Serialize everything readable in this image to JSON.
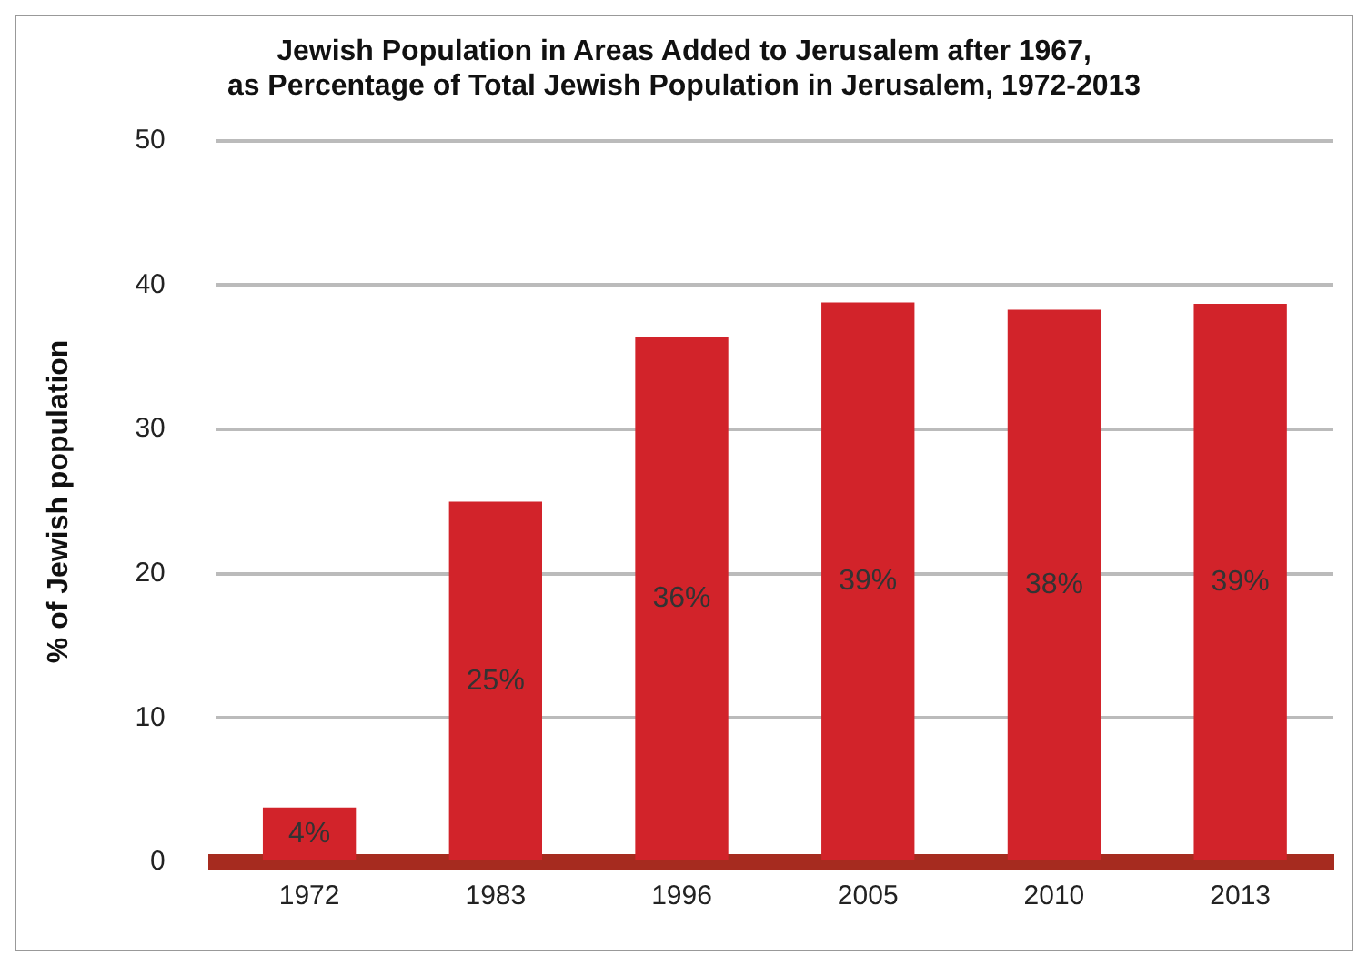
{
  "chart_data": {
    "type": "bar",
    "title": "Jewish Population in Areas Added to Jerusalem after 1967,\nas Percentage of Total Jewish Population in Jerusalem, 1972-2013",
    "ylabel": "% of Jewish population",
    "categories": [
      "1972",
      "1983",
      "1996",
      "2005",
      "2010",
      "2013"
    ],
    "values": [
      3.8,
      25,
      36.4,
      38.8,
      38.3,
      38.7
    ],
    "value_labels": [
      "4%",
      "25%",
      "36%",
      "39%",
      "38%",
      "39%"
    ],
    "color": "#d2232a",
    "ylim": [
      0,
      50
    ],
    "yticks": [
      0,
      10,
      20,
      30,
      40,
      50
    ],
    "grid": "y",
    "legend": false
  }
}
